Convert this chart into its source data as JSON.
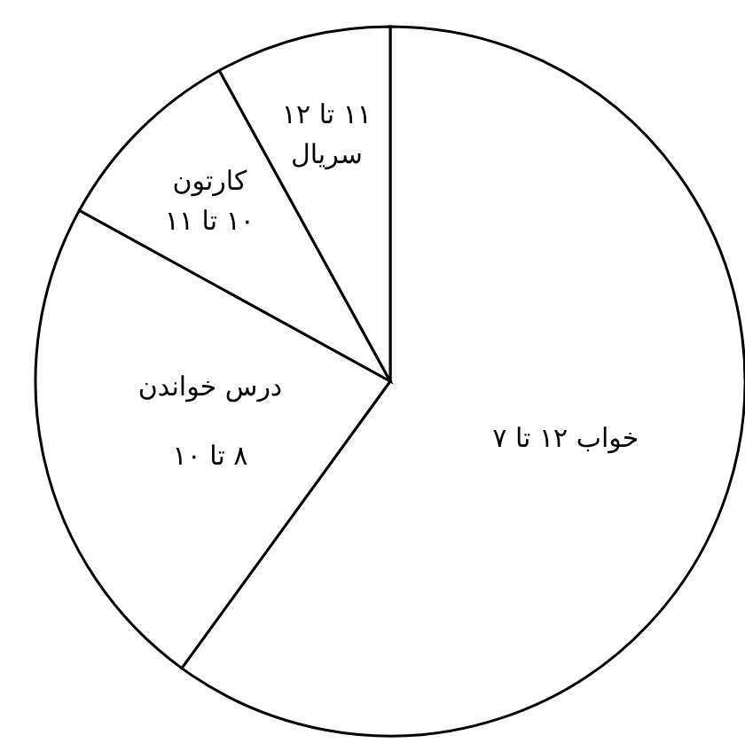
{
  "chart_data": {
    "type": "pie",
    "categories": [
      "خواب ۱۲ تا ۷",
      "درس خواندن\n۸ تا ۱۰",
      "کارتون\n۱۰ تا ۱۱",
      "۱۱ تا ۱۲\nسریال"
    ],
    "values": [
      60,
      23,
      9,
      8
    ],
    "colors": [
      "#ffffff",
      "#ffffff",
      "#ffffff",
      "#ffffff"
    ],
    "legend": false
  }
}
